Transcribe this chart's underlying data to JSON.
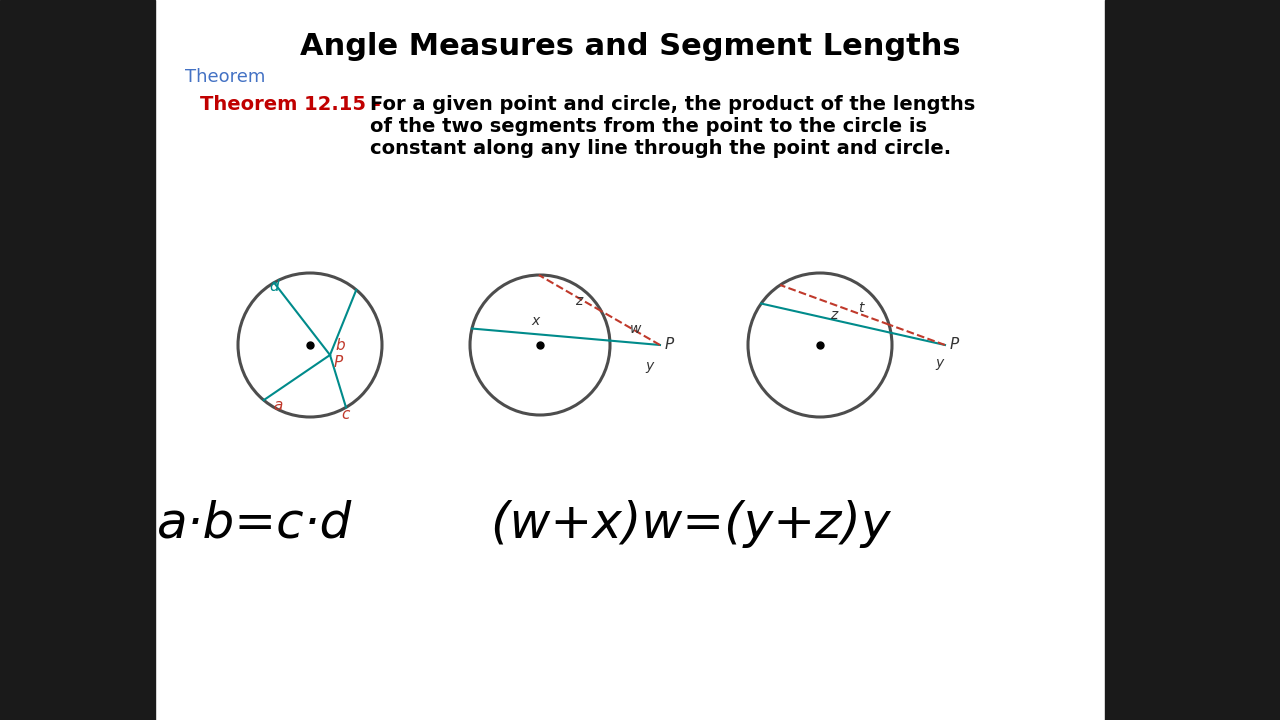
{
  "title": "Angle Measures and Segment Lengths",
  "title_fontsize": 22,
  "title_color": "#000000",
  "theorem_label": "Theorem",
  "theorem_label_color": "#4472C4",
  "theorem_label_fontsize": 13,
  "theorem_number": "Theorem 12.15 - ",
  "theorem_number_color": "#C00000",
  "theorem_number_fontsize": 14,
  "theorem_text_line1": "For a given point and circle, the product of the lengths",
  "theorem_text_line2": "of the two segments from the point to the circle is",
  "theorem_text_line3": "constant along any line through the point and circle.",
  "theorem_text_color": "#000000",
  "theorem_text_fontsize": 14,
  "bg_color": "#FFFFFF",
  "sidebar_color": "#1a1a1a",
  "circle_color": "#4d4d4d",
  "teal_color": "#008B8B",
  "red_color": "#C0392B",
  "dark_color": "#333333",
  "formula1": "a·b=c·d",
  "formula2": "(w+x)w=(y+z)y",
  "formula_fontsize": 36
}
